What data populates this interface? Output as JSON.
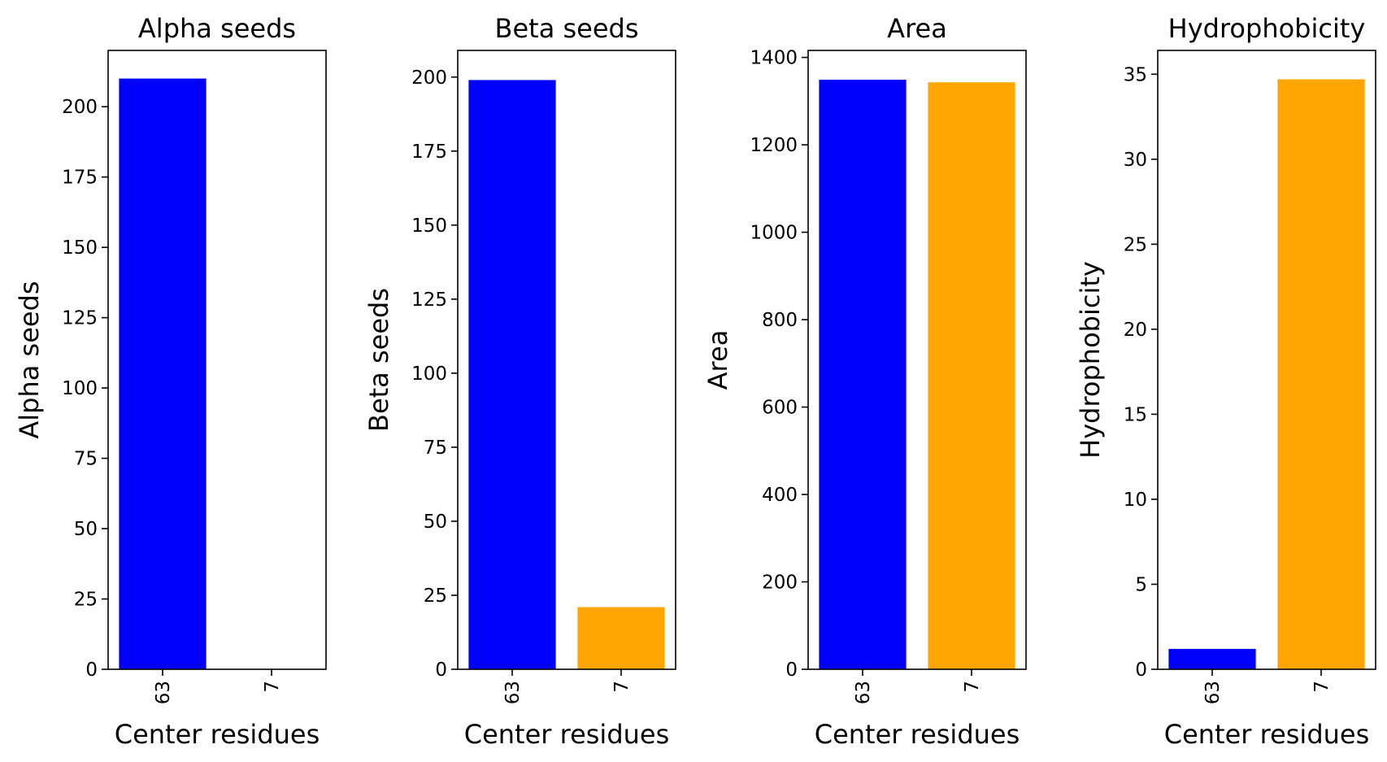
{
  "chart_data": [
    {
      "type": "bar",
      "title": "Alpha seeds",
      "xlabel": "Center residues",
      "ylabel": "Alpha seeds",
      "categories": [
        "63",
        "7"
      ],
      "values": [
        210,
        0
      ],
      "colors": [
        "#0000ff",
        "#ffa500"
      ],
      "ylim": [
        0,
        220
      ],
      "yticks": [
        0,
        25,
        50,
        75,
        100,
        125,
        150,
        175,
        200
      ],
      "grid": false
    },
    {
      "type": "bar",
      "title": "Beta seeds",
      "xlabel": "Center residues",
      "ylabel": "Beta seeds",
      "categories": [
        "63",
        "7"
      ],
      "values": [
        199,
        21
      ],
      "colors": [
        "#0000ff",
        "#ffa500"
      ],
      "ylim": [
        0,
        209
      ],
      "yticks": [
        0,
        25,
        50,
        75,
        100,
        125,
        150,
        175,
        200
      ],
      "grid": false
    },
    {
      "type": "bar",
      "title": "Area",
      "xlabel": "Center residues",
      "ylabel": "Area",
      "categories": [
        "63",
        "7"
      ],
      "values": [
        1349,
        1343
      ],
      "colors": [
        "#0000ff",
        "#ffa500"
      ],
      "ylim": [
        0,
        1416
      ],
      "yticks": [
        0,
        200,
        400,
        600,
        800,
        1000,
        1200,
        1400
      ],
      "grid": false
    },
    {
      "type": "bar",
      "title": "Hydrophobicity",
      "xlabel": "Center residues",
      "ylabel": "Hydrophobicity",
      "categories": [
        "63",
        "7"
      ],
      "values": [
        1.2,
        34.7
      ],
      "colors": [
        "#0000ff",
        "#ffa500"
      ],
      "ylim": [
        0,
        36.4
      ],
      "yticks": [
        0,
        5,
        10,
        15,
        20,
        25,
        30,
        35
      ],
      "grid": false
    }
  ]
}
